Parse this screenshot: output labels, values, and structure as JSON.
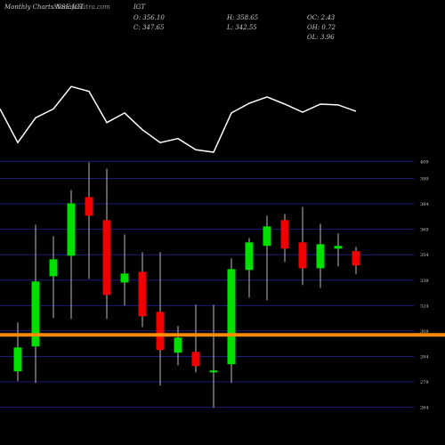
{
  "chart_data": [
    {
      "type": "candlestick",
      "title": "Monthly Charts NSE:IGT",
      "watermark": "MunafaSutra.com",
      "symbol": "IGT",
      "stats": [
        "O: 356.10",
        "H: 358.65",
        "OC: 2.43",
        "C: 347.65",
        "L: 342.55",
        "OH: 0.72",
        "OL: 3.96"
      ],
      "x": [
        1,
        2,
        3,
        4,
        5,
        6,
        7,
        8,
        9,
        10,
        11,
        12,
        13,
        14,
        15,
        16,
        17,
        18,
        19,
        20
      ],
      "xlim": [
        0,
        25
      ],
      "open": [
        285.2,
        299.9,
        341.3,
        353.4,
        388.0,
        374.4,
        337.6,
        343.9,
        320.3,
        296.2,
        296.7,
        284.6,
        289.4,
        345.0,
        359.2,
        374.4,
        361.3,
        346.0,
        357.6,
        356.1
      ],
      "high": [
        314.0,
        371.7,
        364.9,
        392.2,
        408.5,
        404.8,
        366.0,
        355.5,
        355.5,
        311.9,
        324.5,
        324.5,
        351.8,
        363.9,
        377.0,
        378.0,
        382.2,
        372.3,
        366.5,
        358.65
      ],
      "low": [
        279.4,
        278.4,
        316.7,
        316.1,
        339.7,
        316.1,
        324.0,
        311.4,
        276.8,
        288.8,
        284.6,
        263.7,
        278.4,
        328.7,
        327.1,
        349.7,
        336.1,
        334.5,
        347.1,
        342.55
      ],
      "close": [
        299.3,
        338.2,
        351.3,
        384.3,
        377.0,
        330.3,
        342.9,
        317.7,
        297.8,
        305.1,
        288.3,
        285.7,
        345.5,
        361.3,
        370.7,
        357.6,
        346.0,
        360.2,
        359.2,
        347.65
      ],
      "up_color": "#00e000",
      "down_color": "#ee0000",
      "ylim": [
        247,
        415
      ],
      "yticks": [
        409,
        399,
        384,
        369,
        354,
        339,
        324,
        309,
        294,
        279,
        264
      ],
      "grid": true,
      "grid_color": "#1c1c7a",
      "hline": 306.7,
      "hline_color": "#ff8c00"
    },
    {
      "type": "line",
      "x": [
        0,
        1,
        2,
        3,
        4,
        5,
        6,
        7,
        8,
        9,
        10,
        11,
        12,
        13,
        14,
        15,
        16,
        17,
        18,
        19,
        20
      ],
      "xlim": [
        0,
        25
      ],
      "values": [
        64,
        22,
        53,
        64,
        92,
        86,
        47,
        59,
        38,
        22,
        27,
        13,
        10,
        59,
        71,
        79,
        70,
        60,
        70,
        69,
        61
      ],
      "ylim": [
        0,
        100
      ],
      "color": "#ffffff"
    }
  ]
}
